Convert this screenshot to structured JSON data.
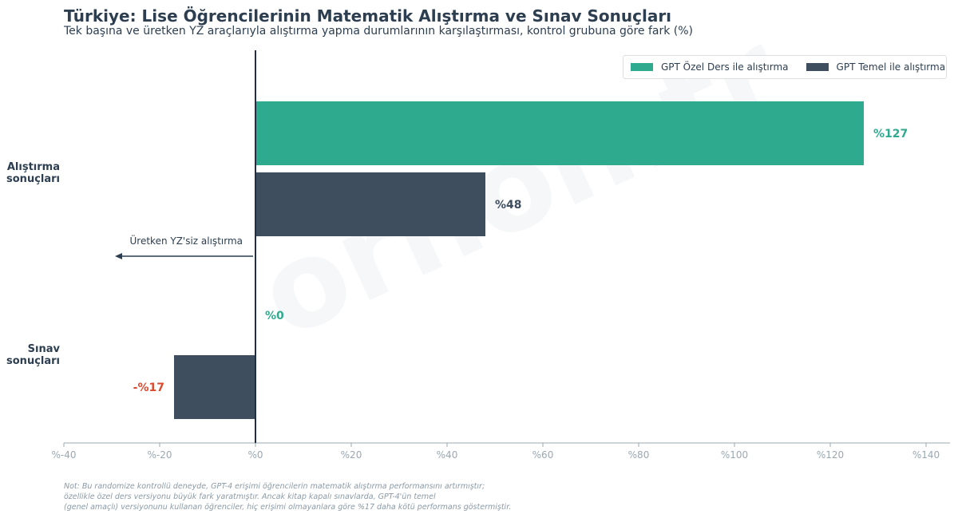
{
  "header": {
    "title": "Türkiye: Lise Öğrencilerinin Matematik Alıştırma ve Sınav Sonuçları",
    "subtitle": "Tek başına ve üretken YZ araçlarıyla alıştırma yapma durumlarının karşılaştırması, kontrol grubuna göre fark (%)"
  },
  "legend": {
    "items": [
      {
        "label": "GPT Özel Ders ile alıştırma",
        "color": "#2eaa8f"
      },
      {
        "label": "GPT Temel ile alıştırma",
        "color": "#3e4e5e"
      }
    ]
  },
  "annotation": {
    "text": "Üretken YZ'siz alıştırma",
    "arrow": "left"
  },
  "watermark": "orhon.tr",
  "note": {
    "lines": [
      "Not: Bu randomize kontrollü deneyde, GPT-4 erişimi öğrencilerin matematik alıştırma performansını artırmıştır;",
      "özellikle özel ders versiyonu büyük fark yaratmıştır. Ancak kitap kapalı sınavlarda, GPT-4'ün temel",
      "(genel amaçlı) versiyonunu kullanan öğrenciler, hiç erişimi olmayanlara göre %17 daha kötü performans göstermiştir."
    ]
  },
  "colors": {
    "tutor": "#2eaa8f",
    "base": "#3e4e5e",
    "negative": "#d94a2e",
    "axis": "#9aa8b2",
    "zero_line": "#1f2f45"
  },
  "chart_data": {
    "type": "bar",
    "orientation": "horizontal",
    "categories": [
      "Alıştırma sonuçları",
      "Sınav sonuçları"
    ],
    "category_labels": [
      [
        "Alıştırma",
        "sonuçları"
      ],
      [
        "Sınav",
        "sonuçları"
      ]
    ],
    "series": [
      {
        "name": "GPT Özel Ders ile alıştırma",
        "values": [
          127,
          0
        ],
        "labels": [
          "%127",
          "%0"
        ]
      },
      {
        "name": "GPT Temel ile alıştırma",
        "values": [
          48,
          -17
        ],
        "labels": [
          "%48",
          "-%17"
        ]
      }
    ],
    "xlim": [
      -40,
      140
    ],
    "xticks": [
      -40,
      -20,
      0,
      20,
      40,
      60,
      80,
      100,
      120,
      140
    ],
    "xtick_labels": [
      "%-40",
      "%-20",
      "%0",
      "%20",
      "%40",
      "%60",
      "%80",
      "%100",
      "%120",
      "%140"
    ],
    "legend_position": "top-right",
    "grid": false
  }
}
